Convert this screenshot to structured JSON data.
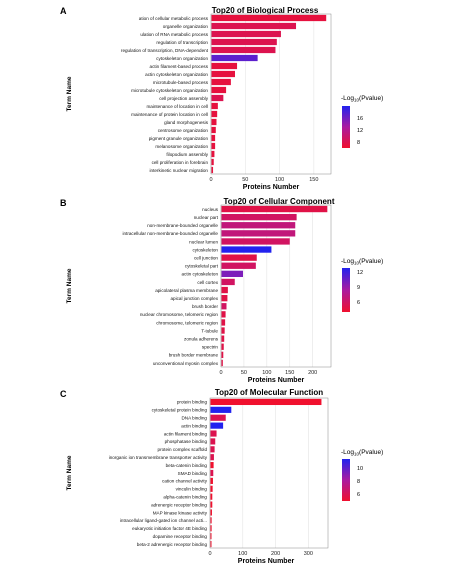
{
  "chart_data": [
    {
      "type": "bar",
      "panel_label": "A",
      "title": "Top20 of Biological Process",
      "xlabel": "Proteins Number",
      "ylabel": "Term Name",
      "xlim": [
        0,
        175
      ],
      "xticks": [
        "0",
        "50",
        "100",
        "150"
      ],
      "categories": [
        "ation of cellular metabolic process",
        "organelle organization",
        "ulation of RNA metabolic process",
        "regulation of transcription",
        "regulation of transcription, DNA-dependent",
        "cytoskeleton organization",
        "actin filament-based process",
        "actin cytoskeleton organization",
        "microtubule-based process",
        "microtubule cytoskeleton organization",
        "cell projection assembly",
        "maintenance of location in cell",
        "maintenance of protein location in cell",
        "gland morphogenesis",
        "centrosome organization",
        "pigment granule organization",
        "melanosome organization",
        "filopodium assembly",
        "cell proliferation in forebrain",
        "interkinetic nuclear migration"
      ],
      "values": [
        168,
        124,
        102,
        96,
        94,
        68,
        38,
        35,
        29,
        22,
        18,
        10,
        9,
        8,
        7,
        6,
        6,
        5,
        4,
        3
      ],
      "color_values": [
        5,
        6,
        6,
        6,
        6,
        15,
        5,
        5,
        5,
        5,
        6,
        5,
        5,
        5,
        5,
        5,
        5,
        5,
        5,
        5
      ],
      "legend": {
        "title": "-Log10(Pvalue)",
        "title_prefix": "-Log",
        "title_sub": "10",
        "title_suffix": "(Pvalue)",
        "ticks": [
          "16",
          "12",
          "8"
        ],
        "min": 4,
        "max": 18,
        "position": "right"
      },
      "grid": true
    },
    {
      "type": "bar",
      "panel_label": "B",
      "title": "Top20 of Cellular Component",
      "xlabel": "Proteins Number",
      "ylabel": "Term Name",
      "xlim": [
        0,
        240
      ],
      "xticks": [
        "0",
        "50",
        "100",
        "150",
        "200"
      ],
      "categories": [
        "nucleus",
        "nuclear part",
        "non-membrane-bounded organelle",
        "intracellular non-membrane-bounded organelle",
        "nuclear lumen",
        "cytoskeleton",
        "cell junction",
        "cytoskeletal part",
        "actin cytoskeleton",
        "cell cortex",
        "apicolateral plasma membrane",
        "apical junction complex",
        "brush border",
        "nuclear chromosome, telomeric region",
        "chromosome, telomeric region",
        "T-tubule",
        "zonula adherens",
        "spectrin",
        "brush border membrane",
        "unconventional myosin complex"
      ],
      "values": [
        232,
        165,
        162,
        162,
        150,
        110,
        78,
        76,
        48,
        30,
        15,
        14,
        12,
        10,
        9,
        8,
        7,
        6,
        5,
        4
      ],
      "color_values": [
        5,
        6,
        7,
        7,
        6,
        13,
        5,
        6,
        10,
        6,
        5,
        5,
        6,
        5,
        5,
        5,
        5,
        5,
        5,
        5
      ],
      "legend": {
        "title": "-Log10(Pvalue)",
        "title_prefix": "-Log",
        "title_sub": "10",
        "title_suffix": "(Pvalue)",
        "ticks": [
          "12",
          "9",
          "6"
        ],
        "min": 4,
        "max": 13,
        "position": "right"
      },
      "grid": true
    },
    {
      "type": "bar",
      "panel_label": "C",
      "title": "Top20 of Molecular Function",
      "xlabel": "Proteins Number",
      "ylabel": "Term Name",
      "xlim": [
        0,
        360
      ],
      "xticks": [
        "0",
        "100",
        "200",
        "300"
      ],
      "categories": [
        "protein binding",
        "cytoskeletal protein binding",
        "DNA binding",
        "actin binding",
        "actin filament binding",
        "phosphatase binding",
        "protein complex scaffold",
        "inorganic ion transmembrane transporter activity",
        "beta-catenin binding",
        "SMAD binding",
        "cation channel activity",
        "vinculin binding",
        "alpha-catenin binding",
        "adrenergic receptor binding",
        "MAP kinase kinase activity",
        "intracellular ligand-gated ion channel acti...",
        "eukaryotic initiation factor 4E binding",
        "dopamine receptor binding",
        "beta-2 adrenergic receptor binding"
      ],
      "values": [
        340,
        65,
        48,
        40,
        20,
        16,
        14,
        12,
        11,
        10,
        9,
        8,
        7,
        7,
        6,
        5,
        5,
        4,
        4
      ],
      "color_values": [
        5,
        12,
        6,
        12,
        6,
        6,
        6,
        6,
        5,
        6,
        5,
        5,
        5,
        5,
        5,
        5,
        5,
        5,
        5
      ],
      "legend": {
        "title": "-Log10(Pvalue)",
        "title_prefix": "-Log",
        "title_sub": "10",
        "title_suffix": "(Pvalue)",
        "ticks": [
          "10",
          "8",
          "6"
        ],
        "min": 5,
        "max": 12,
        "position": "right"
      },
      "grid": true
    }
  ]
}
